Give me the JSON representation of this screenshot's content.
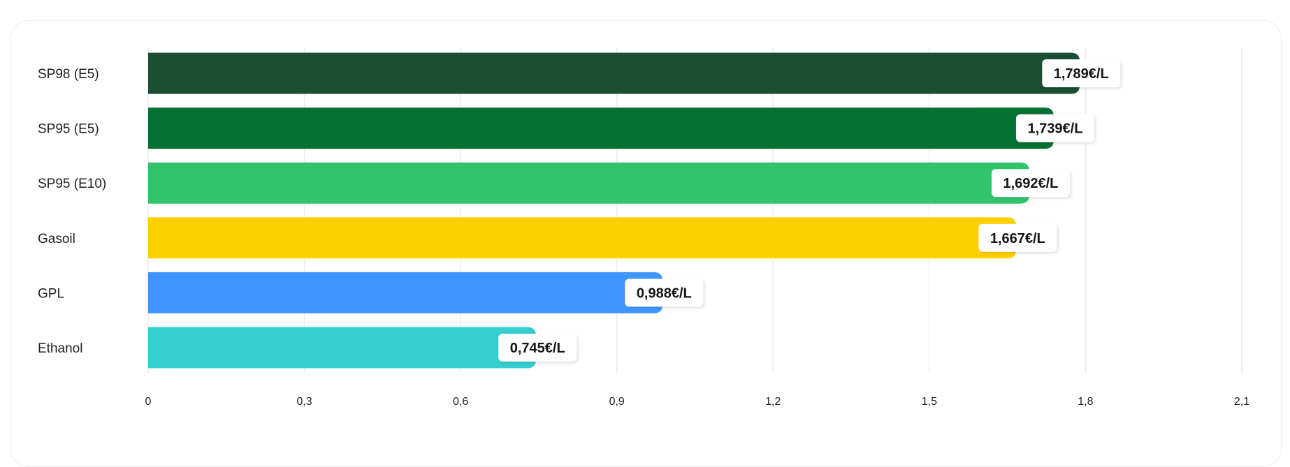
{
  "chart_data": {
    "type": "bar",
    "orientation": "horizontal",
    "title": "",
    "xlabel": "",
    "ylabel": "",
    "categories": [
      "SP98 (E5)",
      "SP95 (E5)",
      "SP95 (E10)",
      "Gasoil",
      "GPL",
      "Ethanol"
    ],
    "values": [
      1.789,
      1.739,
      1.692,
      1.667,
      0.988,
      0.745
    ],
    "value_labels": [
      "1,789€/L",
      "1,739€/L",
      "1,692€/L",
      "1,667€/L",
      "0,988€/L",
      "0,745€/L"
    ],
    "colors": [
      "#1a4f31",
      "#047032",
      "#31c46c",
      "#ffd000",
      "#3f95ff",
      "#36cecf"
    ],
    "xlim": [
      0,
      2.1
    ],
    "xticks": [
      0,
      0.3,
      0.6,
      0.9,
      1.2,
      1.5,
      1.8,
      2.1
    ],
    "xtick_labels": [
      "0",
      "0,3",
      "0,6",
      "0,9",
      "1,2",
      "1,5",
      "1,8",
      "2,1"
    ],
    "grid": true,
    "legend": "none"
  }
}
